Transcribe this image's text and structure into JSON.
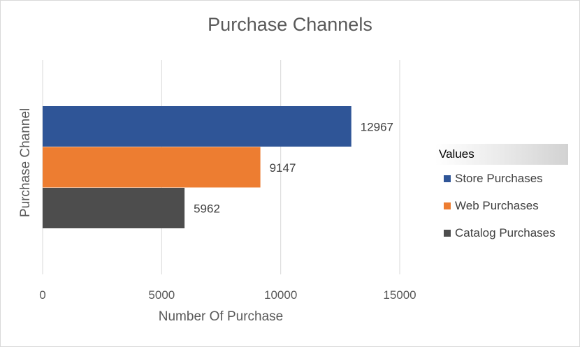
{
  "chart_data": {
    "type": "bar",
    "orientation": "horizontal",
    "title": "Purchase Channels",
    "xlabel": "Number Of Purchase",
    "ylabel": "Purchase Channel",
    "xlim": [
      0,
      15000
    ],
    "x_ticks": [
      0,
      5000,
      10000,
      15000
    ],
    "grid": "vertical",
    "legend_title": "Values",
    "legend_position": "right",
    "data_labels": true,
    "series": [
      {
        "name": "Store Purchases",
        "value": 12967,
        "color": "#2f5597"
      },
      {
        "name": "Web Purchases",
        "value": 9147,
        "color": "#ed7d31"
      },
      {
        "name": "Catalog Purchases",
        "value": 5962,
        "color": "#4d4d4d"
      }
    ]
  }
}
